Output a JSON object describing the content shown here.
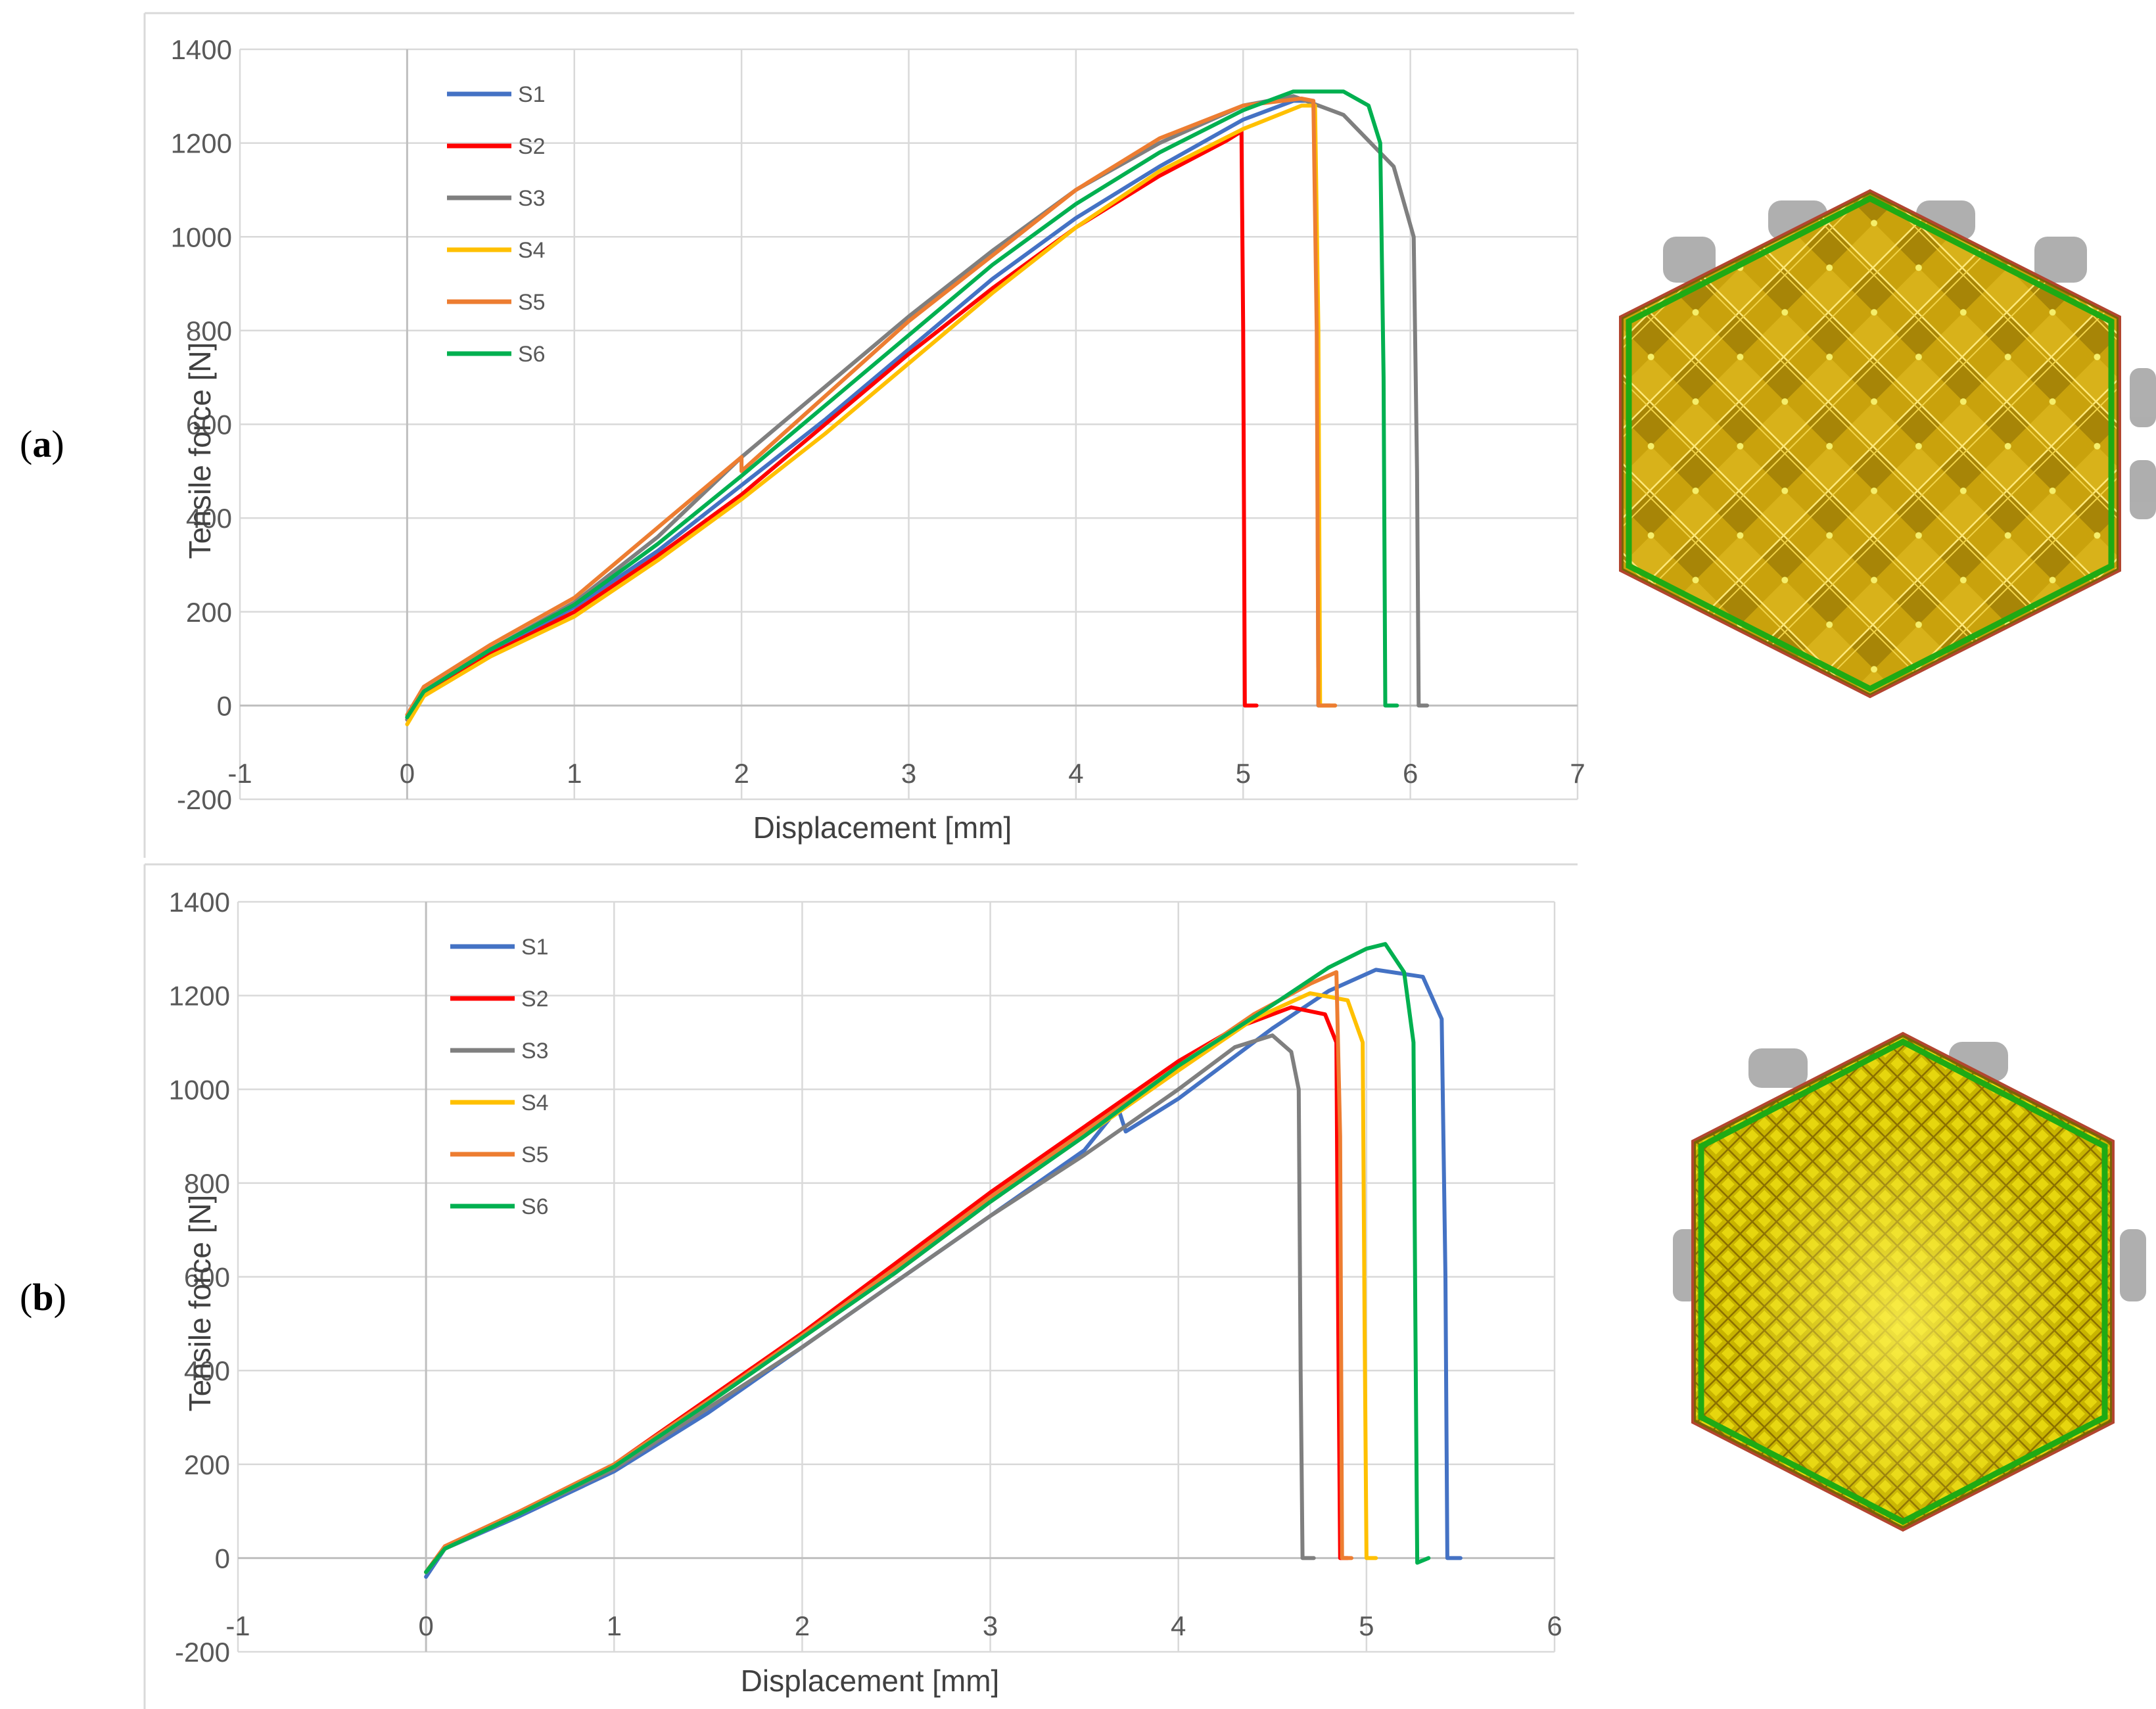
{
  "figure": {
    "panels": [
      {
        "label_open": "(",
        "label_letter": "a",
        "label_close": ")"
      },
      {
        "label_open": "(",
        "label_letter": "b",
        "label_close": ")"
      }
    ]
  },
  "chart_data": [
    {
      "type": "line",
      "panel": "a",
      "title": "",
      "xlabel": "Displacement [mm]",
      "ylabel": "Tensile force [N]",
      "xlim": [
        -1,
        7
      ],
      "ylim": [
        -200,
        1400
      ],
      "xticks": [
        -1,
        0,
        1,
        2,
        3,
        4,
        5,
        6,
        7
      ],
      "yticks": [
        -200,
        0,
        200,
        400,
        600,
        800,
        1000,
        1200,
        1400
      ],
      "grid": true,
      "legend": "top-left",
      "series": [
        {
          "name": "S1",
          "color": "#4472c4",
          "x": [
            0,
            0.1,
            0.5,
            1.0,
            1.5,
            2.0,
            2.5,
            3.0,
            3.5,
            4.0,
            4.5,
            5.0,
            5.3,
            5.42,
            5.44,
            5.45,
            5.52
          ],
          "y": [
            -25,
            30,
            115,
            210,
            330,
            470,
            610,
            760,
            910,
            1040,
            1150,
            1250,
            1290,
            1290,
            1000,
            0,
            0
          ]
        },
        {
          "name": "S2",
          "color": "#ff0000",
          "x": [
            0,
            0.1,
            0.5,
            1.0,
            1.5,
            2.0,
            2.5,
            3.0,
            3.5,
            4.0,
            4.5,
            4.9,
            4.99,
            5.0,
            5.01,
            5.08
          ],
          "y": [
            -30,
            25,
            110,
            200,
            320,
            450,
            600,
            750,
            890,
            1020,
            1130,
            1205,
            1225,
            800,
            0,
            0
          ]
        },
        {
          "name": "S3",
          "color": "#7f7f7f",
          "x": [
            0,
            0.1,
            0.5,
            1.0,
            1.5,
            2.0,
            2.5,
            3.0,
            3.5,
            4.0,
            4.5,
            5.0,
            5.3,
            5.6,
            5.9,
            6.02,
            6.04,
            6.05,
            6.1
          ],
          "y": [
            -30,
            30,
            120,
            220,
            360,
            530,
            680,
            830,
            970,
            1100,
            1200,
            1280,
            1300,
            1260,
            1150,
            1000,
            500,
            0,
            0
          ]
        },
        {
          "name": "S4",
          "color": "#ffc000",
          "x": [
            0,
            0.1,
            0.5,
            1.0,
            1.5,
            2.0,
            2.5,
            3.0,
            3.5,
            4.0,
            4.5,
            5.0,
            5.35,
            5.43,
            5.45,
            5.46,
            5.55
          ],
          "y": [
            -40,
            20,
            105,
            190,
            310,
            440,
            580,
            730,
            880,
            1020,
            1140,
            1230,
            1280,
            1280,
            800,
            0,
            0
          ]
        },
        {
          "name": "S5",
          "color": "#ed7d31",
          "x": [
            0,
            0.1,
            0.5,
            1.0,
            1.5,
            2.0,
            2.0,
            2.5,
            3.0,
            3.5,
            4.0,
            4.5,
            5.0,
            5.35,
            5.42,
            5.44,
            5.45,
            5.55
          ],
          "y": [
            -20,
            40,
            130,
            230,
            380,
            530,
            500,
            660,
            820,
            960,
            1100,
            1210,
            1280,
            1295,
            1290,
            800,
            0,
            0
          ]
        },
        {
          "name": "S6",
          "color": "#00b050",
          "x": [
            0,
            0.1,
            0.5,
            1.0,
            1.5,
            2.0,
            2.5,
            3.0,
            3.5,
            4.0,
            4.5,
            5.0,
            5.3,
            5.6,
            5.75,
            5.82,
            5.84,
            5.85,
            5.92
          ],
          "y": [
            -25,
            30,
            120,
            215,
            345,
            490,
            640,
            790,
            940,
            1070,
            1180,
            1270,
            1310,
            1310,
            1280,
            1200,
            700,
            0,
            0
          ]
        }
      ]
    },
    {
      "type": "line",
      "panel": "b",
      "title": "",
      "xlabel": "Displacement [mm]",
      "ylabel": "Tensile force [N]",
      "xlim": [
        -1,
        6
      ],
      "ylim": [
        -200,
        1400
      ],
      "xticks": [
        -1,
        0,
        1,
        2,
        3,
        4,
        5,
        6
      ],
      "yticks": [
        -200,
        0,
        200,
        400,
        600,
        800,
        1000,
        1200,
        1400
      ],
      "grid": true,
      "legend": "top-left",
      "series": [
        {
          "name": "S1",
          "color": "#4472c4",
          "x": [
            0,
            0.1,
            0.5,
            1.0,
            1.5,
            2.0,
            2.5,
            3.0,
            3.5,
            3.68,
            3.72,
            4.0,
            4.5,
            4.8,
            5.05,
            5.3,
            5.4,
            5.42,
            5.43,
            5.5
          ],
          "y": [
            -40,
            20,
            90,
            185,
            310,
            450,
            590,
            730,
            870,
            960,
            910,
            980,
            1130,
            1210,
            1255,
            1240,
            1150,
            600,
            0,
            0
          ]
        },
        {
          "name": "S2",
          "color": "#ff0000",
          "x": [
            0,
            0.1,
            0.5,
            1.0,
            1.5,
            2.0,
            2.5,
            3.0,
            3.5,
            4.0,
            4.3,
            4.6,
            4.78,
            4.84,
            4.85,
            4.86,
            4.9
          ],
          "y": [
            -30,
            25,
            100,
            200,
            340,
            480,
            630,
            780,
            920,
            1060,
            1130,
            1175,
            1160,
            1100,
            500,
            0,
            0
          ]
        },
        {
          "name": "S3",
          "color": "#7f7f7f",
          "x": [
            0,
            0.1,
            0.5,
            1.0,
            1.5,
            2.0,
            2.5,
            3.0,
            3.5,
            4.0,
            4.3,
            4.5,
            4.6,
            4.64,
            4.65,
            4.66,
            4.72
          ],
          "y": [
            -30,
            20,
            95,
            190,
            320,
            450,
            590,
            730,
            860,
            1000,
            1090,
            1115,
            1080,
            1000,
            400,
            0,
            0
          ]
        },
        {
          "name": "S4",
          "color": "#ffc000",
          "x": [
            0,
            0.1,
            0.5,
            1.0,
            1.5,
            2.0,
            2.5,
            3.0,
            3.5,
            4.0,
            4.4,
            4.7,
            4.9,
            4.98,
            4.99,
            5.0,
            5.05
          ],
          "y": [
            -30,
            20,
            95,
            195,
            330,
            470,
            610,
            760,
            900,
            1040,
            1150,
            1205,
            1190,
            1100,
            500,
            0,
            0
          ]
        },
        {
          "name": "S5",
          "color": "#ed7d31",
          "x": [
            0,
            0.1,
            0.5,
            1.0,
            1.5,
            2.0,
            2.5,
            3.0,
            3.5,
            4.0,
            4.4,
            4.7,
            4.84,
            4.86,
            4.87,
            4.92
          ],
          "y": [
            -30,
            25,
            100,
            200,
            335,
            475,
            620,
            770,
            910,
            1050,
            1160,
            1225,
            1250,
            900,
            0,
            0
          ]
        },
        {
          "name": "S6",
          "color": "#00b050",
          "x": [
            0,
            0.1,
            0.5,
            1.0,
            1.5,
            2.0,
            2.5,
            3.0,
            3.5,
            4.0,
            4.5,
            4.8,
            5.0,
            5.1,
            5.2,
            5.25,
            5.26,
            5.27,
            5.33
          ],
          "y": [
            -30,
            20,
            95,
            195,
            330,
            470,
            610,
            760,
            900,
            1050,
            1180,
            1260,
            1300,
            1310,
            1250,
            1100,
            500,
            -10,
            0
          ]
        }
      ]
    }
  ]
}
